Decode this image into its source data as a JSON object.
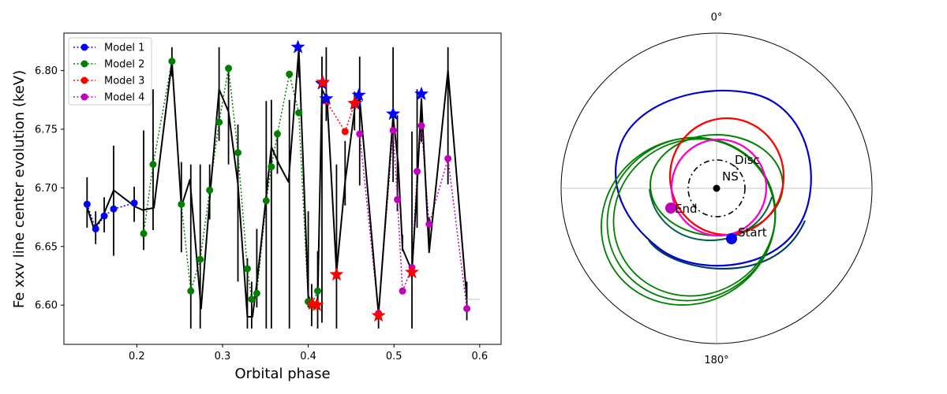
{
  "chart_data": [
    {
      "type": "line",
      "xlabel": "Orbital phase",
      "ylabel": "Fe xxv line center evolution (keV)",
      "xlim": [
        0.115,
        0.625
      ],
      "ylim": [
        6.5665,
        6.832
      ],
      "xticks": [
        0.2,
        0.3,
        0.4,
        0.5,
        0.6
      ],
      "xtick_labels": [
        "0.2",
        "0.3",
        "0.4",
        "0.5",
        "0.6"
      ],
      "yticks": [
        6.6,
        6.65,
        6.7,
        6.75,
        6.8
      ],
      "ytick_labels": [
        "6.60",
        "6.65",
        "6.70",
        "6.75",
        "6.80"
      ],
      "legend_position": "upper-left",
      "series": [
        {
          "name": "Model 1",
          "color": "#0000ff",
          "x": [
            0.142,
            0.152,
            0.162,
            0.173,
            0.197
          ],
          "y": [
            6.686,
            6.665,
            6.676,
            6.682,
            6.687
          ]
        },
        {
          "name": "Model 2",
          "color": "#008000",
          "x": [
            0.208,
            0.219,
            0.241,
            0.252,
            0.263,
            0.274,
            0.285,
            0.296,
            0.307,
            0.318,
            0.329,
            0.334,
            0.34,
            0.351,
            0.357,
            0.364,
            0.378,
            0.389,
            0.4,
            0.404,
            0.411
          ],
          "y": [
            6.661,
            6.72,
            6.808,
            6.686,
            6.612,
            6.639,
            6.698,
            6.756,
            6.802,
            6.73,
            6.631,
            6.605,
            6.61,
            6.689,
            6.718,
            6.746,
            6.797,
            6.764,
            6.603,
            6.6,
            6.612
          ]
        },
        {
          "name": "Model 3",
          "color": "#ff0000",
          "x": [
            0.421,
            0.443,
            0.454
          ],
          "y": [
            6.774,
            6.748,
            6.772
          ]
        },
        {
          "name": "Model 4",
          "color": "#bf00bf",
          "x": [
            0.46,
            0.482,
            0.499,
            0.504,
            0.51,
            0.521,
            0.527,
            0.532,
            0.541,
            0.563,
            0.585
          ],
          "y": [
            6.746,
            6.593,
            6.749,
            6.69,
            6.612,
            6.632,
            6.714,
            6.753,
            6.669,
            6.725,
            6.597
          ]
        },
        {
          "name": "",
          "color": "#000000",
          "x": [
            0.14,
            0.15,
            0.16,
            0.173,
            0.198,
            0.207,
            0.22,
            0.241,
            0.252,
            0.262,
            0.275,
            0.285,
            0.296,
            0.307,
            0.318,
            0.329,
            0.335,
            0.341,
            0.352,
            0.357,
            0.366,
            0.377,
            0.389,
            0.4,
            0.405,
            0.411,
            0.416,
            0.422,
            0.433,
            0.443,
            0.455,
            0.46,
            0.482,
            0.499,
            0.505,
            0.51,
            0.521,
            0.527,
            0.532,
            0.541,
            0.563,
            0.585
          ],
          "y": [
            6.688,
            6.665,
            6.675,
            6.698,
            6.684,
            6.681,
            6.683,
            6.808,
            6.684,
            6.707,
            6.597,
            6.69,
            6.784,
            6.765,
            6.703,
            6.59,
            6.59,
            6.625,
            6.7,
            6.735,
            6.72,
            6.705,
            6.818,
            6.608,
            6.6,
            6.604,
            6.784,
            6.775,
            6.628,
            6.705,
            6.772,
            6.776,
            6.592,
            6.761,
            6.72,
            6.648,
            6.629,
            6.702,
            6.776,
            6.645,
            6.8,
            6.605
          ]
        }
      ],
      "errorbars": {
        "x": [
          0.142,
          0.152,
          0.162,
          0.173,
          0.197,
          0.208,
          0.219,
          0.241,
          0.252,
          0.263,
          0.274,
          0.285,
          0.296,
          0.307,
          0.318,
          0.329,
          0.334,
          0.34,
          0.351,
          0.357,
          0.364,
          0.378,
          0.389,
          0.4,
          0.404,
          0.411,
          0.416,
          0.421,
          0.433,
          0.443,
          0.454,
          0.46,
          0.482,
          0.499,
          0.504,
          0.51,
          0.521,
          0.527,
          0.532,
          0.541,
          0.563,
          0.585
        ],
        "lo": [
          6.666,
          6.652,
          6.662,
          6.642,
          6.671,
          6.647,
          6.664,
          6.795,
          6.645,
          6.58,
          6.58,
          6.673,
          6.74,
          6.72,
          6.62,
          6.58,
          6.58,
          6.598,
          6.58,
          6.58,
          6.712,
          6.58,
          6.794,
          6.598,
          6.582,
          6.58,
          6.585,
          6.757,
          6.58,
          6.685,
          6.749,
          6.702,
          6.58,
          6.705,
          6.68,
          6.646,
          6.58,
          6.666,
          6.739,
          6.653,
          6.703,
          6.587
        ],
        "hi": [
          6.709,
          6.68,
          6.692,
          6.736,
          6.701,
          6.749,
          6.784,
          6.82,
          6.722,
          6.72,
          6.72,
          6.72,
          6.82,
          6.802,
          6.754,
          6.64,
          6.62,
          6.665,
          6.774,
          6.775,
          6.747,
          6.775,
          6.82,
          6.68,
          6.618,
          6.646,
          6.812,
          6.82,
          6.72,
          6.74,
          6.782,
          6.812,
          6.6,
          6.82,
          6.762,
          6.66,
          6.748,
          6.784,
          6.775,
          6.675,
          6.82,
          6.62
        ]
      },
      "star_markers": [
        {
          "series": "Model 1",
          "color": "#0000ff",
          "x": [
            0.388,
            0.416,
            0.421,
            0.455,
            0.459,
            0.499,
            0.532
          ],
          "y": [
            6.82,
            6.789,
            6.776,
            6.772,
            6.779,
            6.763,
            6.78
          ]
        },
        {
          "series": "Model 3",
          "color": "#ff0000",
          "x": [
            0.405,
            0.41,
            0.417,
            0.433,
            0.454,
            0.482,
            0.521
          ],
          "y": [
            6.601,
            6.6,
            6.79,
            6.626,
            6.772,
            6.591,
            6.628
          ]
        }
      ]
    },
    {
      "type": "polar-orbit",
      "angle_labels": [
        "0°",
        "180°"
      ],
      "labels": {
        "disc": "Disc",
        "ns": "NS",
        "start": "Start",
        "end": "End"
      },
      "orbits": [
        {
          "name": "blue orbit",
          "color": "#0000cc",
          "inner_color": "#003a6b"
        },
        {
          "name": "green orbits",
          "color": "#008000",
          "inner_color": "#005f4a"
        },
        {
          "name": "red orbit",
          "color": "#ff0000"
        },
        {
          "name": "magenta orbit",
          "color": "#ff00cc"
        }
      ],
      "markers": [
        {
          "label": "Start",
          "color": "#0000ff"
        },
        {
          "label": "End",
          "color": "#bf00bf"
        },
        {
          "label": "NS",
          "color": "#000000"
        }
      ]
    }
  ]
}
